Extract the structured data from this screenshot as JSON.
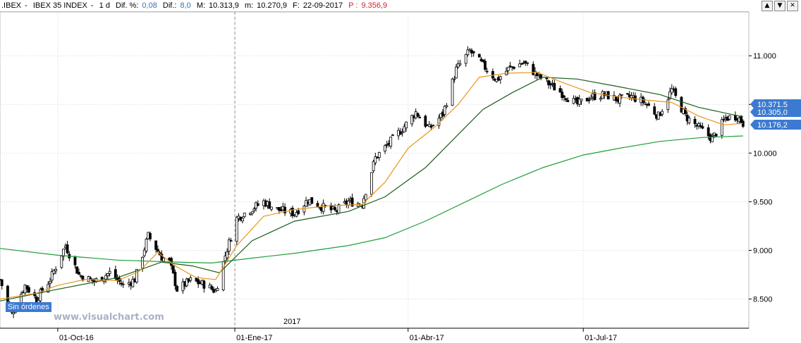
{
  "header": {
    "symbol": ".IBEX",
    "name": "IBEX 35 INDEX",
    "period": "1 d",
    "dif_pct_label": "Dif. %:",
    "dif_pct_value": "0,08",
    "dif_label": "Dif.:",
    "dif_value": "8,0",
    "max_label": "M:",
    "max_value": "10.313,9",
    "min_label": "m:",
    "min_value": "10.270,9",
    "date_label": "F:",
    "date_value": "22-09-2017",
    "p_label": "P :",
    "p_value": "9.356,9"
  },
  "window_buttons": [
    "▲",
    "▼",
    "✕"
  ],
  "badge_text": "Sin órdenes",
  "watermark": "www.visualchart.com",
  "year_marker": "2017",
  "colors": {
    "candle": "#000000",
    "ma_short": "#e8961e",
    "ma_mid": "#1a5c1a",
    "ma_long": "#1f9e3a",
    "price_tag": "#3b7ad0",
    "grid": "#d6d6d6"
  },
  "chart_data": {
    "type": "candlestick",
    "grid": true,
    "y_axis": {
      "position": "right",
      "ylim": [
        8200,
        11450
      ],
      "ticks": [
        8500,
        9000,
        9500,
        10000,
        10500,
        11000
      ],
      "tick_labels": [
        "8.500",
        "9.000",
        "9.500",
        "10.000",
        "10.500",
        "11.000"
      ]
    },
    "x_axis": {
      "range": [
        "2016-09-01",
        "2017-09-25"
      ],
      "ticks": [
        {
          "date": "2016-10-01",
          "label": "01-Oct-16"
        },
        {
          "date": "2017-01-01",
          "label": "01-Ene-17"
        },
        {
          "date": "2017-04-01",
          "label": "01-Abr-17"
        },
        {
          "date": "2017-07-01",
          "label": "01-Jul-17"
        }
      ],
      "year_separator": "2017-01-01"
    },
    "close_keypoints": [
      [
        "2016-09-01",
        8700
      ],
      [
        "2016-09-07",
        8350
      ],
      [
        "2016-09-14",
        8640
      ],
      [
        "2016-09-20",
        8500
      ],
      [
        "2016-09-27",
        8700
      ],
      [
        "2016-10-05",
        9050
      ],
      [
        "2016-10-12",
        8750
      ],
      [
        "2016-10-20",
        8680
      ],
      [
        "2016-10-28",
        8770
      ],
      [
        "2016-11-04",
        8640
      ],
      [
        "2016-11-10",
        8700
      ],
      [
        "2016-11-17",
        9150
      ],
      [
        "2016-11-24",
        8930
      ],
      [
        "2016-11-28",
        8880
      ],
      [
        "2016-12-02",
        8600
      ],
      [
        "2016-12-09",
        8690
      ],
      [
        "2016-12-16",
        8650
      ],
      [
        "2016-12-22",
        8580
      ],
      [
        "2016-12-27",
        8950
      ],
      [
        "2017-01-02",
        9330
      ],
      [
        "2017-01-09",
        9420
      ],
      [
        "2017-01-16",
        9500
      ],
      [
        "2017-01-23",
        9420
      ],
      [
        "2017-02-01",
        9380
      ],
      [
        "2017-02-08",
        9520
      ],
      [
        "2017-02-15",
        9450
      ],
      [
        "2017-02-22",
        9400
      ],
      [
        "2017-03-01",
        9500
      ],
      [
        "2017-03-08",
        9480
      ],
      [
        "2017-03-15",
        9950
      ],
      [
        "2017-03-22",
        10100
      ],
      [
        "2017-03-29",
        10250
      ],
      [
        "2017-04-05",
        10420
      ],
      [
        "2017-04-12",
        10250
      ],
      [
        "2017-04-19",
        10400
      ],
      [
        "2017-04-26",
        10860
      ],
      [
        "2017-05-03",
        11050
      ],
      [
        "2017-05-10",
        10900
      ],
      [
        "2017-05-17",
        10750
      ],
      [
        "2017-05-24",
        10880
      ],
      [
        "2017-05-31",
        10930
      ],
      [
        "2017-06-07",
        10800
      ],
      [
        "2017-06-14",
        10700
      ],
      [
        "2017-06-21",
        10600
      ],
      [
        "2017-06-28",
        10500
      ],
      [
        "2017-07-05",
        10580
      ],
      [
        "2017-07-12",
        10600
      ],
      [
        "2017-07-19",
        10550
      ],
      [
        "2017-07-26",
        10580
      ],
      [
        "2017-08-02",
        10520
      ],
      [
        "2017-08-09",
        10380
      ],
      [
        "2017-08-16",
        10650
      ],
      [
        "2017-08-23",
        10380
      ],
      [
        "2017-08-30",
        10260
      ],
      [
        "2017-09-06",
        10150
      ],
      [
        "2017-09-13",
        10360
      ],
      [
        "2017-09-19",
        10380
      ],
      [
        "2017-09-22",
        10305
      ]
    ],
    "moving_averages": {
      "short": [
        [
          "2016-09-01",
          8500
        ],
        [
          "2016-09-20",
          8560
        ],
        [
          "2016-10-01",
          8640
        ],
        [
          "2016-10-15",
          8700
        ],
        [
          "2016-11-01",
          8690
        ],
        [
          "2016-11-12",
          8780
        ],
        [
          "2016-11-22",
          8980
        ],
        [
          "2016-12-01",
          8840
        ],
        [
          "2016-12-12",
          8720
        ],
        [
          "2016-12-22",
          8700
        ],
        [
          "2017-01-02",
          9050
        ],
        [
          "2017-01-16",
          9350
        ],
        [
          "2017-02-01",
          9420
        ],
        [
          "2017-02-20",
          9460
        ],
        [
          "2017-03-08",
          9470
        ],
        [
          "2017-03-20",
          9700
        ],
        [
          "2017-04-01",
          10050
        ],
        [
          "2017-04-15",
          10270
        ],
        [
          "2017-04-27",
          10500
        ],
        [
          "2017-05-08",
          10780
        ],
        [
          "2017-05-22",
          10820
        ],
        [
          "2017-06-07",
          10830
        ],
        [
          "2017-06-21",
          10720
        ],
        [
          "2017-07-05",
          10620
        ],
        [
          "2017-07-26",
          10560
        ],
        [
          "2017-08-16",
          10520
        ],
        [
          "2017-08-30",
          10380
        ],
        [
          "2017-09-12",
          10290
        ],
        [
          "2017-09-22",
          10305
        ]
      ],
      "mid": [
        [
          "2016-09-01",
          8480
        ],
        [
          "2016-10-01",
          8600
        ],
        [
          "2016-11-01",
          8720
        ],
        [
          "2016-11-24",
          8880
        ],
        [
          "2016-12-10",
          8840
        ],
        [
          "2016-12-24",
          8770
        ],
        [
          "2017-01-10",
          9100
        ],
        [
          "2017-02-01",
          9300
        ],
        [
          "2017-03-01",
          9400
        ],
        [
          "2017-03-20",
          9550
        ],
        [
          "2017-04-10",
          9850
        ],
        [
          "2017-04-25",
          10150
        ],
        [
          "2017-05-10",
          10450
        ],
        [
          "2017-05-25",
          10620
        ],
        [
          "2017-06-10",
          10780
        ],
        [
          "2017-06-28",
          10760
        ],
        [
          "2017-07-20",
          10680
        ],
        [
          "2017-08-10",
          10600
        ],
        [
          "2017-08-30",
          10470
        ],
        [
          "2017-09-22",
          10371.5
        ]
      ],
      "long": [
        [
          "2016-09-01",
          9020
        ],
        [
          "2016-10-01",
          8950
        ],
        [
          "2016-11-01",
          8900
        ],
        [
          "2016-12-01",
          8880
        ],
        [
          "2016-12-20",
          8870
        ],
        [
          "2017-01-10",
          8920
        ],
        [
          "2017-02-01",
          8970
        ],
        [
          "2017-03-01",
          9050
        ],
        [
          "2017-03-20",
          9130
        ],
        [
          "2017-04-10",
          9300
        ],
        [
          "2017-05-01",
          9500
        ],
        [
          "2017-05-20",
          9680
        ],
        [
          "2017-06-10",
          9850
        ],
        [
          "2017-07-01",
          9980
        ],
        [
          "2017-07-20",
          10050
        ],
        [
          "2017-08-10",
          10120
        ],
        [
          "2017-09-01",
          10160
        ],
        [
          "2017-09-22",
          10176.2
        ]
      ]
    },
    "price_tags": [
      {
        "label": "10.371,5",
        "value": 10371.5
      },
      {
        "label": "10.305,0",
        "value": 10305
      },
      {
        "label": "10.176,2",
        "value": 10176.2
      }
    ]
  }
}
